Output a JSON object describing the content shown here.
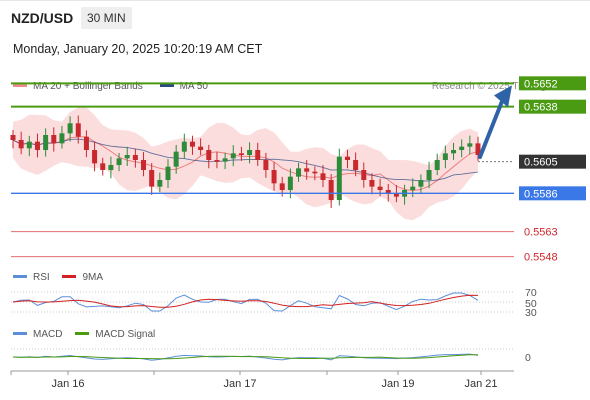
{
  "header": {
    "symbol": "NZD/USD",
    "timeframe": "30 MIN",
    "datetime": "Monday, January 20, 2025 10:20:19 AM CET"
  },
  "legend": {
    "bollinger_label": "MA 20 + Bollinger Bands",
    "ma50_label": "MA 50",
    "source": "Research © 2025 Trading Central"
  },
  "indicators": {
    "rsi_label": "RSI",
    "rsi_ma_label": "9MA",
    "macd_label": "MACD",
    "macd_signal_label": "MACD Signal"
  },
  "colors": {
    "resistance": "#4a9a12",
    "pivot": "#3b78e7",
    "support": "#e07070",
    "current": "#333333",
    "arrow": "#2f63a8",
    "candle_up": "#2e8b3a",
    "candle_down": "#c8282e",
    "bollinger_fill": "#fbd7d7",
    "ma20": "#f07e7e",
    "ma50": "#2e4a86",
    "rsi": "#5b8fd9",
    "rsi_ma": "#d42020",
    "macd": "#5b8fd9",
    "macd_signal": "#4a9a12"
  },
  "chart_data": {
    "type": "candlestick",
    "y_range": [
      0.554,
      0.566
    ],
    "x_axis": {
      "tick_labels": [
        "Jan 16",
        "Jan 17",
        "Jan 19",
        "Jan 21"
      ]
    },
    "levels": [
      {
        "value": 0.5652,
        "label": "0.5652",
        "kind": "resistance"
      },
      {
        "value": 0.5638,
        "label": "0.5638",
        "kind": "resistance"
      },
      {
        "value": 0.5605,
        "label": "0.5605",
        "kind": "current"
      },
      {
        "value": 0.5586,
        "label": "0.5586",
        "kind": "pivot"
      },
      {
        "value": 0.5563,
        "label": "0.5563",
        "kind": "support"
      },
      {
        "value": 0.5548,
        "label": "0.5548",
        "kind": "support"
      }
    ],
    "close_path": [
      0.5618,
      0.5613,
      0.5617,
      0.5612,
      0.5621,
      0.5616,
      0.5622,
      0.5628,
      0.562,
      0.5612,
      0.5604,
      0.56,
      0.5603,
      0.5607,
      0.5609,
      0.5606,
      0.56,
      0.559,
      0.5594,
      0.5602,
      0.5611,
      0.5617,
      0.5614,
      0.5612,
      0.5606,
      0.5605,
      0.5607,
      0.561,
      0.5609,
      0.5612,
      0.5606,
      0.56,
      0.5592,
      0.5588,
      0.5596,
      0.5601,
      0.5599,
      0.5598,
      0.5594,
      0.5582,
      0.5608,
      0.5606,
      0.56,
      0.5594,
      0.559,
      0.5588,
      0.5586,
      0.5584,
      0.5588,
      0.559,
      0.5594,
      0.56,
      0.5606,
      0.561,
      0.5612,
      0.5614,
      0.5616,
      0.5609
    ],
    "rsi": {
      "levels": [
        70,
        50,
        30
      ],
      "level_labels": [
        "70",
        "50",
        "30"
      ]
    },
    "macd": {
      "zero_label": "0"
    }
  }
}
